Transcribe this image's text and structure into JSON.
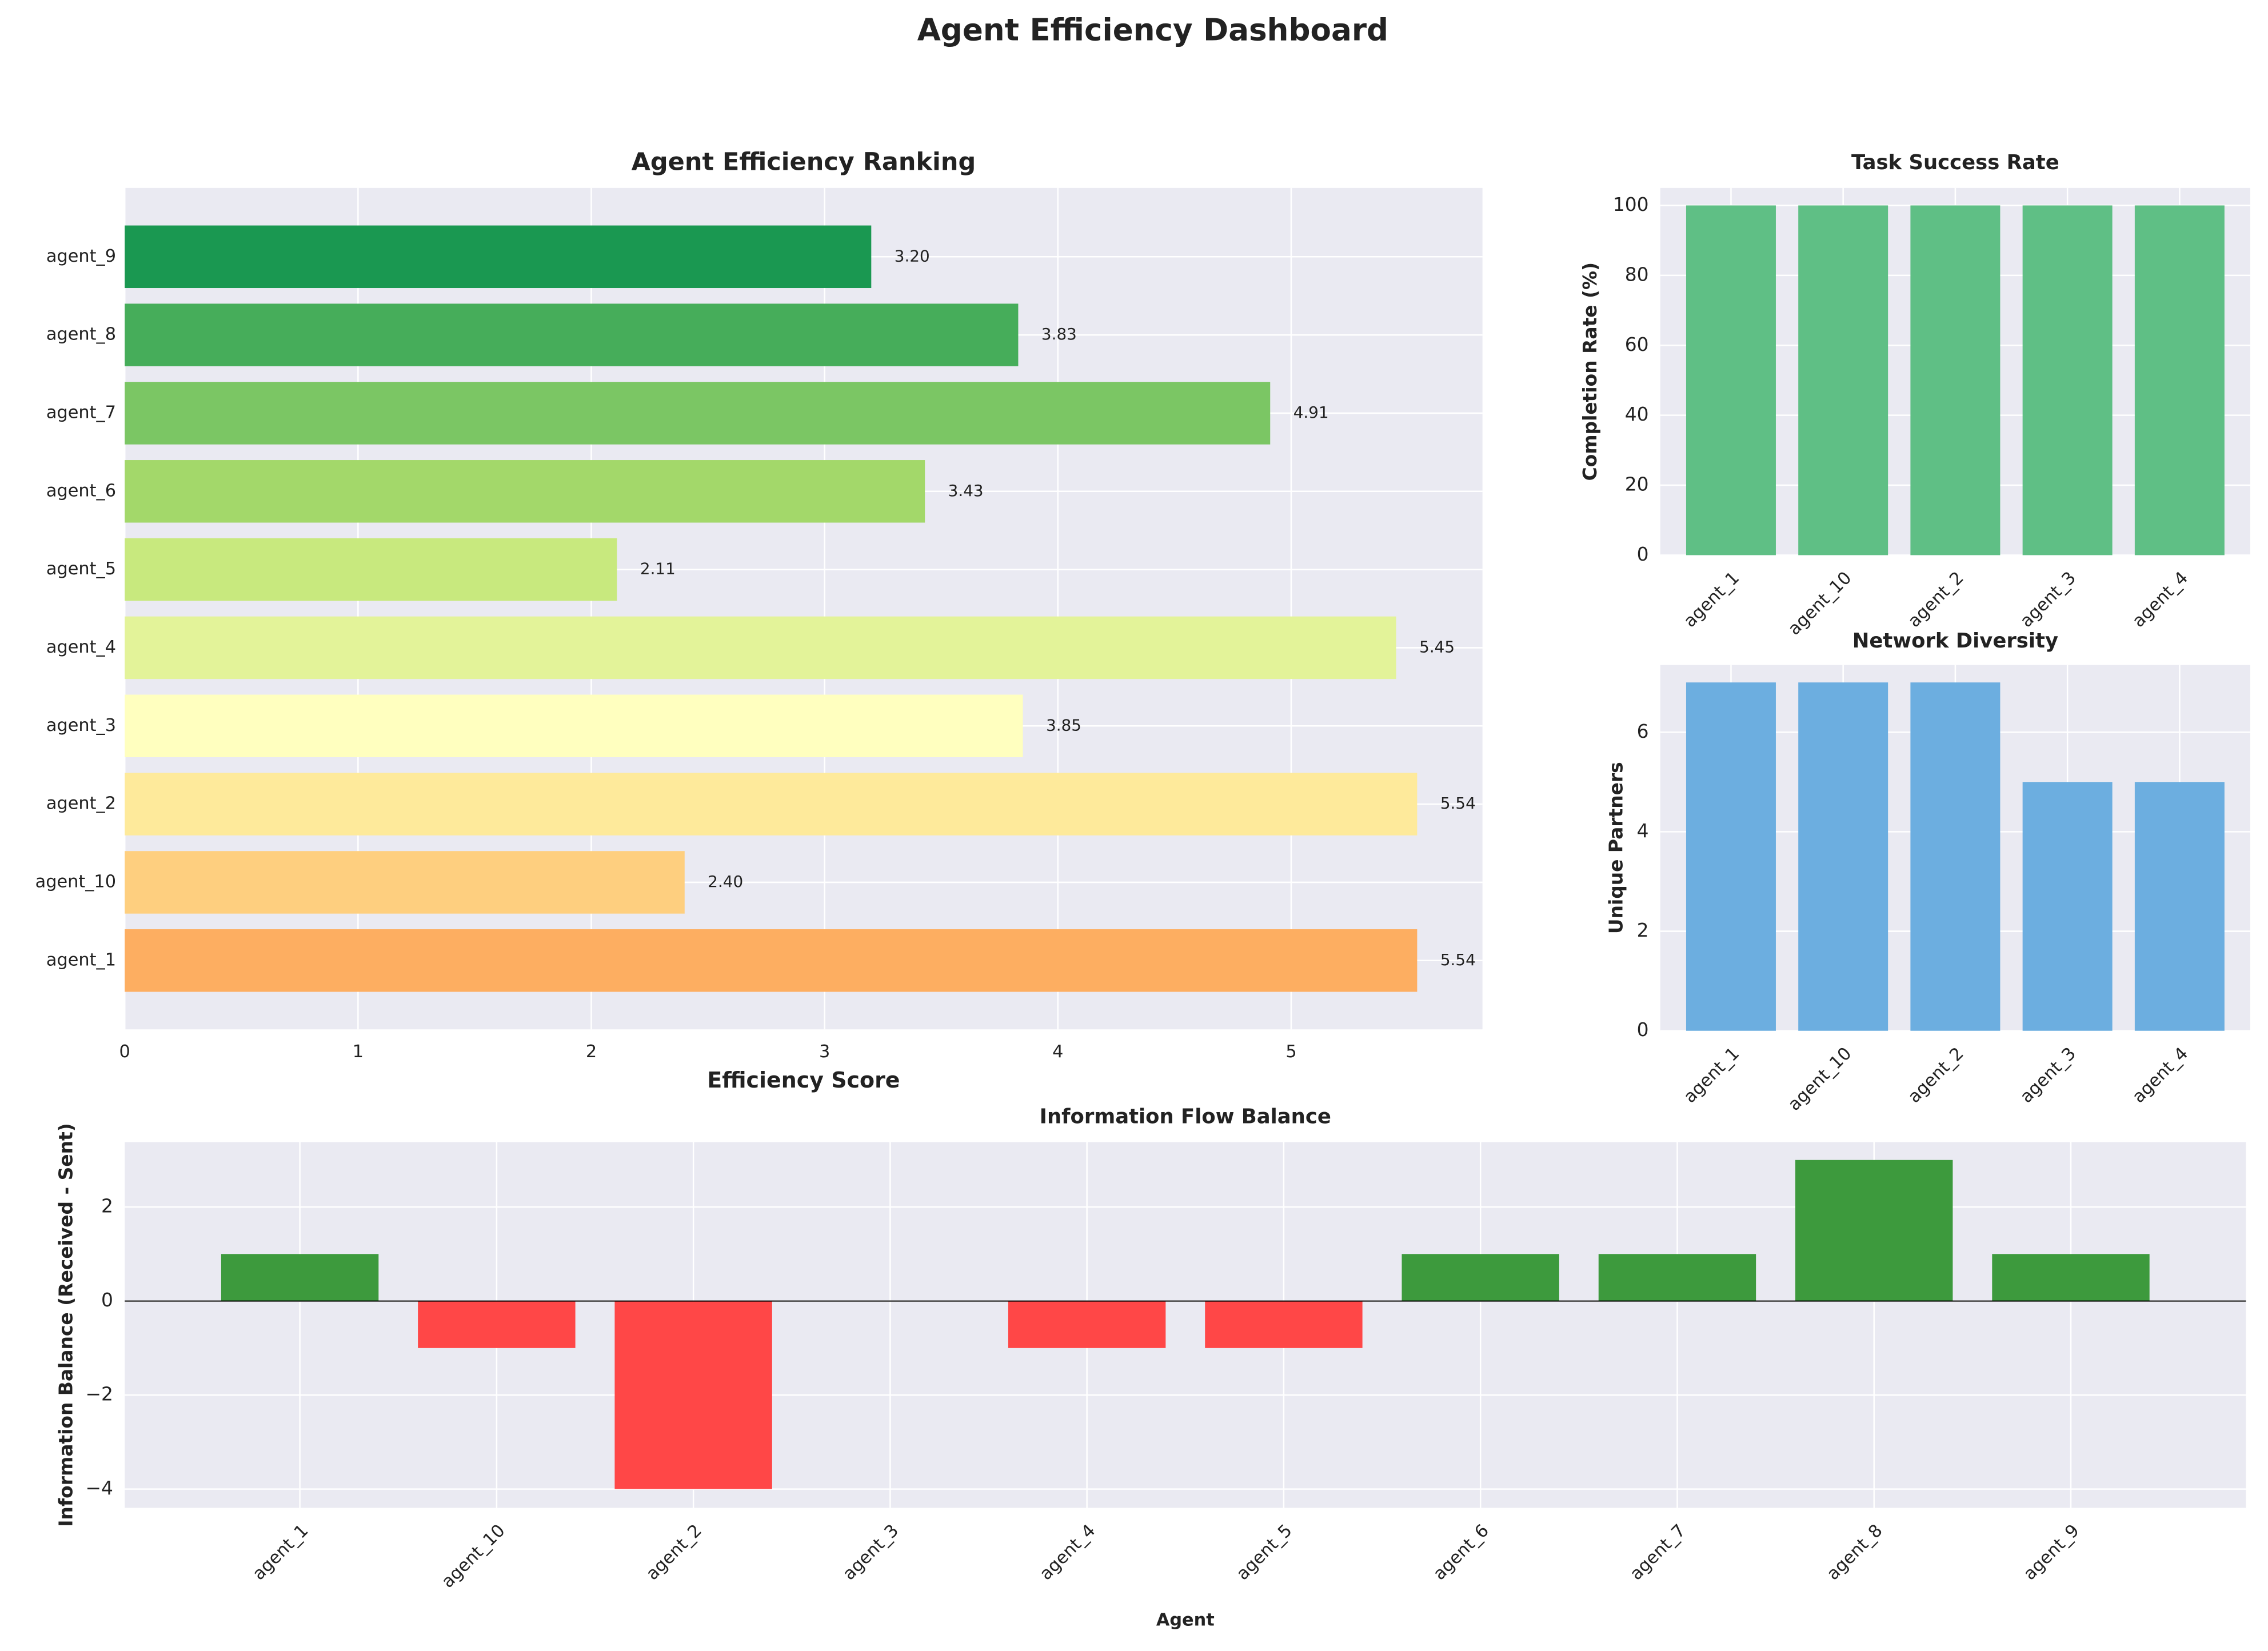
{
  "title": "Agent Efficiency Dashboard",
  "chart_data": [
    {
      "type": "barh",
      "title": "Agent Efficiency Ranking",
      "xlabel": "Efficiency Score",
      "categories": [
        "agent_1",
        "agent_10",
        "agent_2",
        "agent_3",
        "agent_4",
        "agent_5",
        "agent_6",
        "agent_7",
        "agent_8",
        "agent_9"
      ],
      "values": [
        5.54,
        2.4,
        5.54,
        3.85,
        5.45,
        2.11,
        3.43,
        4.91,
        3.83,
        3.2
      ],
      "value_labels": [
        "5.54",
        "2.40",
        "5.54",
        "3.85",
        "5.45",
        "2.11",
        "3.43",
        "4.91",
        "3.83",
        "3.20"
      ],
      "colors": [
        "#fdae61",
        "#fecf7f",
        "#feea9b",
        "#ffffbf",
        "#e3f399",
        "#c8e97e",
        "#a3d86a",
        "#7bc664",
        "#46ad5a",
        "#1a9851"
      ],
      "xlim": [
        0,
        5.82
      ],
      "xticks": [
        0,
        1,
        2,
        3,
        4,
        5
      ],
      "grid": true
    },
    {
      "type": "bar",
      "title": "Task Success Rate",
      "ylabel": "Completion Rate (%)",
      "categories": [
        "agent_1",
        "agent_10",
        "agent_2",
        "agent_3",
        "agent_4"
      ],
      "values": [
        100,
        100,
        100,
        100,
        100
      ],
      "color": "#5fbf85",
      "ylim": [
        0,
        105
      ],
      "yticks": [
        0,
        20,
        40,
        60,
        80,
        100
      ],
      "grid": true
    },
    {
      "type": "bar",
      "title": "Network Diversity",
      "ylabel": "Unique Partners",
      "categories": [
        "agent_1",
        "agent_10",
        "agent_2",
        "agent_3",
        "agent_4"
      ],
      "values": [
        7,
        7,
        7,
        5,
        5
      ],
      "color": "#6caee0",
      "ylim": [
        0,
        7.35
      ],
      "yticks": [
        0,
        2,
        4,
        6
      ],
      "grid": true
    },
    {
      "type": "bar",
      "title": "Information Flow Balance",
      "xlabel": "Agent",
      "ylabel": "Information Balance (Received - Sent)",
      "categories": [
        "agent_1",
        "agent_10",
        "agent_2",
        "agent_3",
        "agent_4",
        "agent_5",
        "agent_6",
        "agent_7",
        "agent_8",
        "agent_9"
      ],
      "values": [
        1,
        -1,
        -4,
        0,
        -1,
        -1,
        1,
        1,
        3,
        1
      ],
      "positive_color": "#3d9a3d",
      "negative_color": "#ff4747",
      "zero_line": true,
      "ylim": [
        -4.4,
        3.38
      ],
      "yticks": [
        {
          "value": -4,
          "label": "−4"
        },
        {
          "value": -2,
          "label": "−2"
        },
        0,
        2
      ],
      "grid": true
    }
  ]
}
